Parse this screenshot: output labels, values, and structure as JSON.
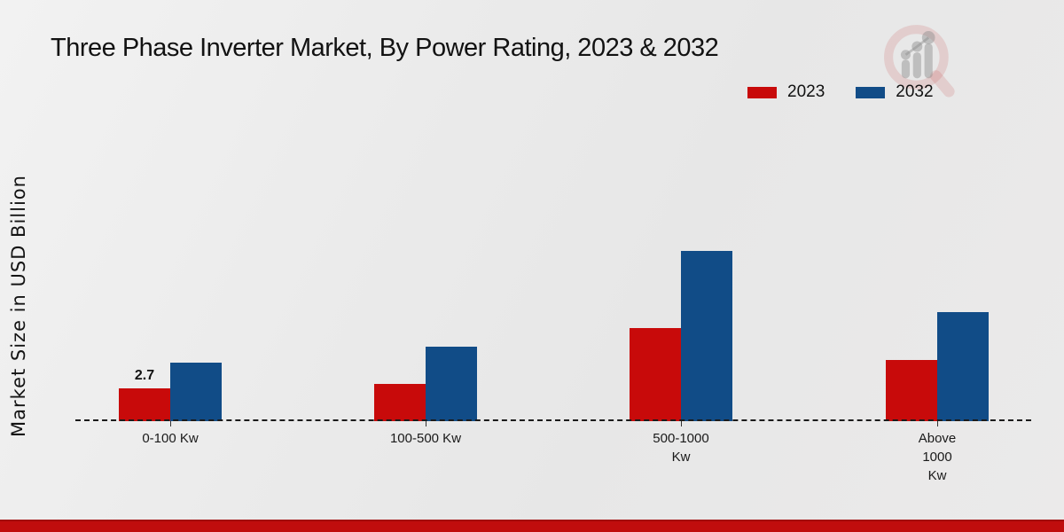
{
  "page": {
    "title": "Three Phase Inverter Market, By Power Rating, 2023 & 2032",
    "logo_name": "market-research-future-watermark"
  },
  "colors": {
    "series_2023": "#c80a0a",
    "series_2032": "#114c87",
    "footer_bar": "#c00d0d",
    "axis_line": "#1b1b1b",
    "background": "#ebebeb"
  },
  "chart_data": {
    "type": "bar",
    "title": "Three Phase Inverter Market, By Power Rating, 2023 & 2032",
    "xlabel": "",
    "ylabel": "Market Size in USD Billion",
    "categories": [
      "0-100 Kw",
      "100-500 Kw",
      "500-1000\nKw",
      "Above\n1000\nKw"
    ],
    "series": [
      {
        "name": "2023",
        "color": "#c80a0a",
        "values": [
          2.7,
          3.1,
          7.7,
          5.0
        ]
      },
      {
        "name": "2032",
        "color": "#114c87",
        "values": [
          4.8,
          6.1,
          14.0,
          9.0
        ]
      }
    ],
    "value_labels": [
      {
        "series": "2023",
        "category_index": 0,
        "text": "2.7"
      }
    ],
    "ylim": [
      0,
      14.5
    ],
    "grid": false,
    "legend_position": "top-right",
    "baseline_style": "dashed"
  }
}
